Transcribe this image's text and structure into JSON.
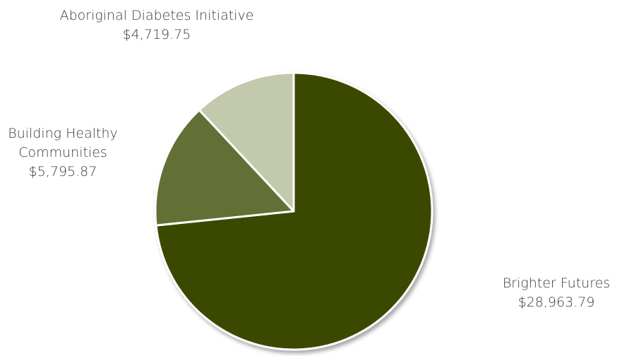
{
  "chart_data": {
    "type": "pie",
    "slices": [
      {
        "label": "Brighter Futures",
        "label_lines": [
          "Brighter Futures"
        ],
        "value": 28963.79,
        "value_label": "$28,963.79",
        "color": "#3b4a00"
      },
      {
        "label": "Building Healthy Communities",
        "label_lines": [
          "Building Healthy",
          "Communities"
        ],
        "value": 5795.87,
        "value_label": "$5,795.87",
        "color": "#637034"
      },
      {
        "label": "Aboriginal Diabetes Initiative",
        "label_lines": [
          "Aboriginal Diabetes Initiative"
        ],
        "value": 4719.75,
        "value_label": "$4,719.75",
        "color": "#c3c9ad"
      }
    ],
    "start": "12 o'clock",
    "direction": "clockwise",
    "slice_border_color": "#ffffff"
  }
}
